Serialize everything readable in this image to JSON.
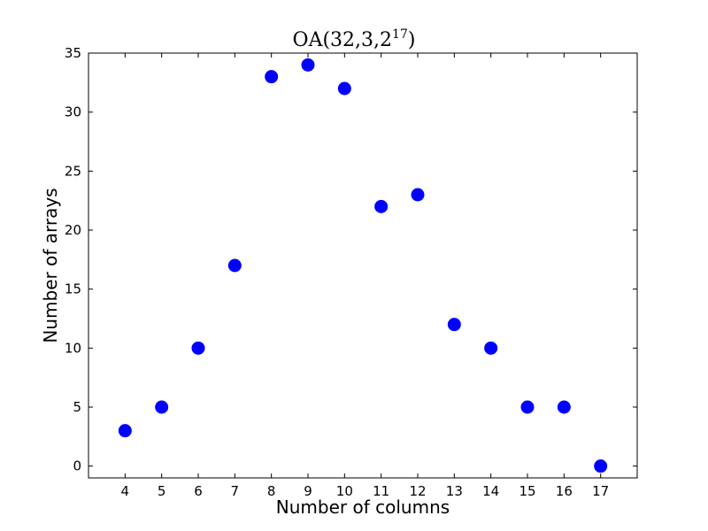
{
  "chart_data": {
    "type": "scatter",
    "title": "OA(32,3,2",
    "title_superscript": "17",
    "title_suffix": ")",
    "xlabel": "Number of columns",
    "ylabel": "Number of arrays",
    "x": [
      4,
      5,
      6,
      7,
      8,
      9,
      10,
      11,
      12,
      13,
      14,
      15,
      16,
      17
    ],
    "y": [
      3,
      5,
      10,
      17,
      33,
      34,
      32,
      22,
      23,
      12,
      10,
      5,
      5,
      0
    ],
    "xlim": [
      3,
      18
    ],
    "ylim": [
      -1,
      35
    ],
    "xticks": [
      "4",
      "5",
      "6",
      "7",
      "8",
      "9",
      "10",
      "11",
      "12",
      "13",
      "14",
      "15",
      "16",
      "17"
    ],
    "yticks": [
      "0",
      "5",
      "10",
      "15",
      "20",
      "25",
      "30",
      "35"
    ],
    "marker_color": "#0000ff",
    "grid": false,
    "legend": "none"
  }
}
